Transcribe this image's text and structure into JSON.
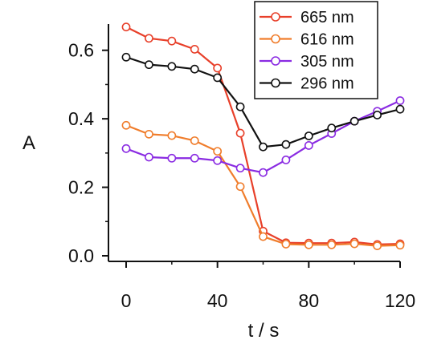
{
  "chart_data": {
    "type": "line",
    "xlabel": "t / s",
    "ylabel": "A",
    "xlim": [
      0,
      120
    ],
    "ylim": [
      0,
      0.7
    ],
    "xticks": [
      "0",
      "40",
      "80",
      "120"
    ],
    "xtick_values": [
      0,
      40,
      80,
      120
    ],
    "yticks": [
      "0.0",
      "0.2",
      "0.4",
      "0.6"
    ],
    "ytick_values": [
      0,
      0.2,
      0.4,
      0.6
    ],
    "grid": false,
    "legend_position": "top-right",
    "markers": "open-circle",
    "x": [
      0,
      10,
      20,
      30,
      40,
      50,
      60,
      70,
      80,
      90,
      100,
      110,
      120
    ],
    "series": [
      {
        "name": "665 nm",
        "color": "#e8402a",
        "values": [
          0.668,
          0.635,
          0.627,
          0.603,
          0.548,
          0.358,
          0.072,
          0.038,
          0.037,
          0.037,
          0.04,
          0.033,
          0.035
        ]
      },
      {
        "name": "616 nm",
        "color": "#f07d2c",
        "values": [
          0.381,
          0.355,
          0.351,
          0.336,
          0.305,
          0.202,
          0.056,
          0.034,
          0.032,
          0.032,
          0.035,
          0.029,
          0.031
        ]
      },
      {
        "name": "305 nm",
        "color": "#8a2be2",
        "values": [
          0.313,
          0.288,
          0.285,
          0.285,
          0.278,
          0.256,
          0.243,
          0.28,
          0.322,
          0.357,
          0.393,
          0.422,
          0.453
        ]
      },
      {
        "name": "296 nm",
        "color": "#111111",
        "values": [
          0.58,
          0.558,
          0.553,
          0.545,
          0.52,
          0.435,
          0.318,
          0.325,
          0.35,
          0.373,
          0.393,
          0.411,
          0.428
        ]
      }
    ]
  }
}
